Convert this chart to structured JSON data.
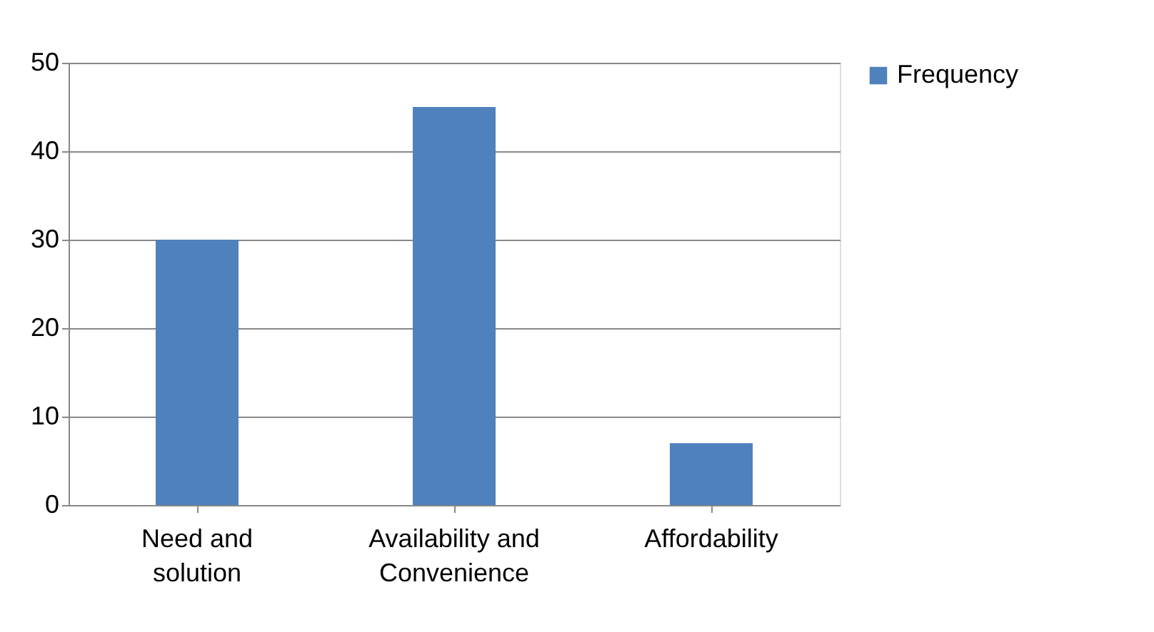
{
  "chart_data": {
    "type": "bar",
    "categories": [
      "Need and\nsolution",
      "Availability  and\nConvenience",
      "Affordability"
    ],
    "series": [
      {
        "name": "Frequency",
        "color": "#4f81bd",
        "values": [
          30,
          45,
          7
        ]
      }
    ],
    "ylim": [
      0,
      50
    ],
    "yticks": [
      0,
      10,
      20,
      30,
      40,
      50
    ],
    "grid": "y",
    "legend": "right"
  }
}
